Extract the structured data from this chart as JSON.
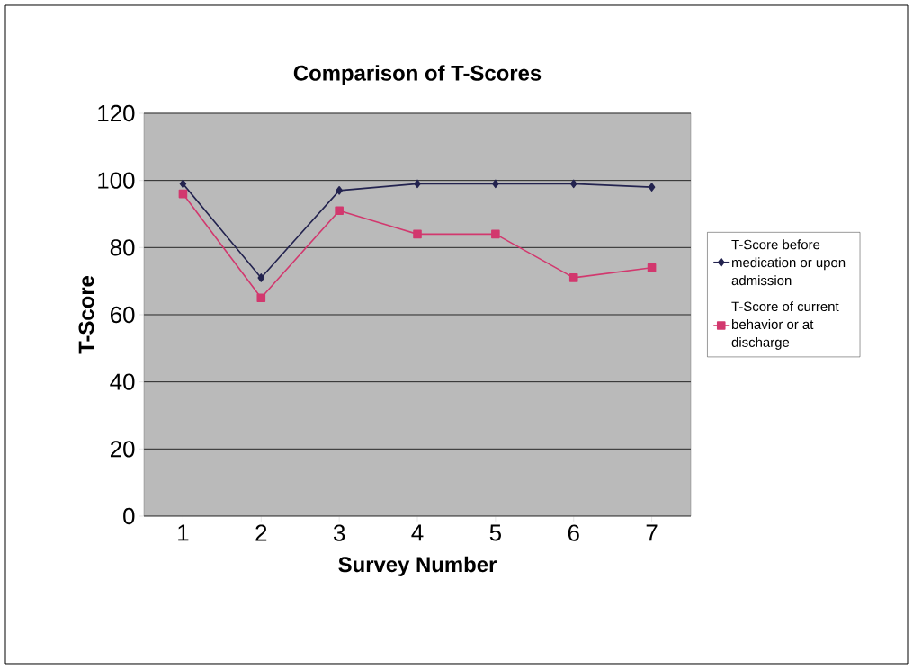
{
  "chart_data": {
    "type": "line",
    "title": "Comparison of T-Scores",
    "xlabel": "Survey Number",
    "ylabel": "T-Score",
    "categories": [
      "1",
      "2",
      "3",
      "4",
      "5",
      "6",
      "7"
    ],
    "series": [
      {
        "name": "T-Score before medication or upon admission",
        "color": "#23234f",
        "marker": "diamond",
        "values": [
          99,
          71,
          97,
          99,
          99,
          99,
          98
        ]
      },
      {
        "name": "T-Score of current behavior or at discharge",
        "color": "#d2386e",
        "marker": "square",
        "values": [
          96,
          65,
          91,
          84,
          84,
          71,
          74
        ]
      }
    ],
    "ylim": [
      0,
      120
    ],
    "yticks": [
      0,
      20,
      40,
      60,
      80,
      100,
      120
    ],
    "grid": "y",
    "legend": "right"
  }
}
